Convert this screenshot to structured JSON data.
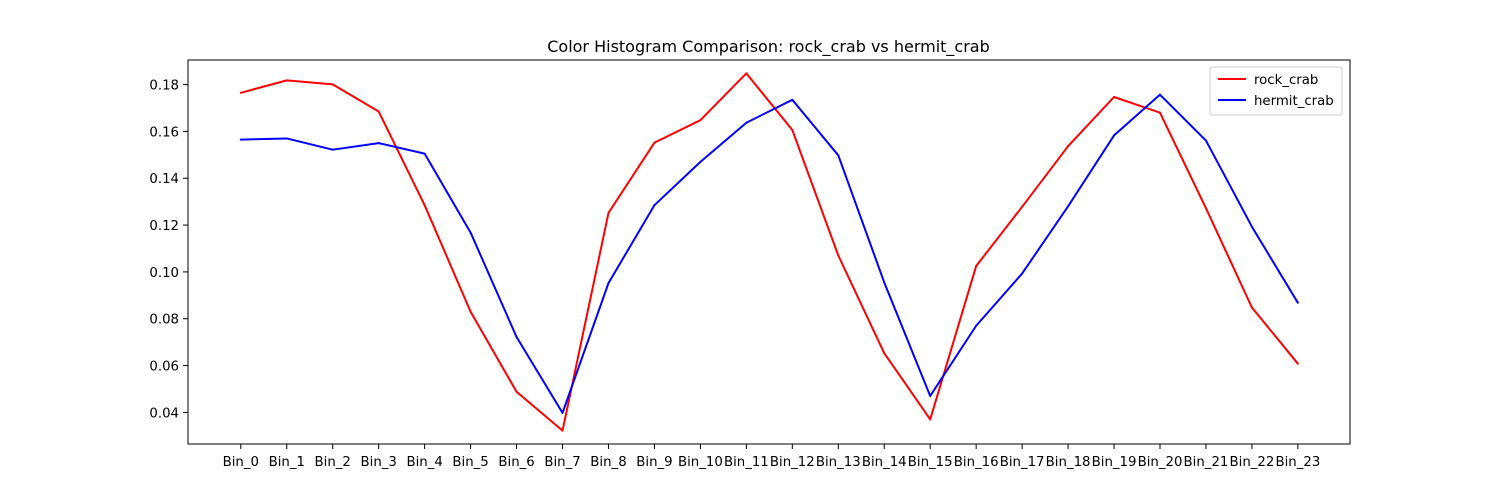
{
  "chart_data": {
    "type": "line",
    "title": "Color Histogram Comparison: rock_crab vs hermit_crab",
    "xlabel": "",
    "ylabel": "",
    "categories": [
      "Bin_0",
      "Bin_1",
      "Bin_2",
      "Bin_3",
      "Bin_4",
      "Bin_5",
      "Bin_6",
      "Bin_7",
      "Bin_8",
      "Bin_9",
      "Bin_10",
      "Bin_11",
      "Bin_12",
      "Bin_13",
      "Bin_14",
      "Bin_15",
      "Bin_16",
      "Bin_17",
      "Bin_18",
      "Bin_19",
      "Bin_20",
      "Bin_21",
      "Bin_22",
      "Bin_23"
    ],
    "yticks": [
      "0.04",
      "0.06",
      "0.08",
      "0.10",
      "0.12",
      "0.14",
      "0.16",
      "0.18"
    ],
    "ylim": [
      0.0265,
      0.1905
    ],
    "grid": false,
    "legend_position": "upper right",
    "series": [
      {
        "name": "rock_crab",
        "color": "#ff0000",
        "values": [
          0.1765,
          0.1818,
          0.1801,
          0.1685,
          0.1285,
          0.083,
          0.0488,
          0.0322,
          0.1252,
          0.1552,
          0.1648,
          0.1848,
          0.1606,
          0.107,
          0.0653,
          0.037,
          0.1025,
          0.1278,
          0.1537,
          0.1747,
          0.168,
          0.1272,
          0.0848,
          0.0608
        ]
      },
      {
        "name": "hermit_crab",
        "color": "#0000ff",
        "values": [
          0.1565,
          0.157,
          0.1522,
          0.155,
          0.1505,
          0.1168,
          0.0722,
          0.0398,
          0.0952,
          0.1285,
          0.147,
          0.1637,
          0.1735,
          0.1498,
          0.0955,
          0.047,
          0.077,
          0.0993,
          0.128,
          0.1583,
          0.1757,
          0.1561,
          0.1193,
          0.0868
        ]
      }
    ]
  }
}
